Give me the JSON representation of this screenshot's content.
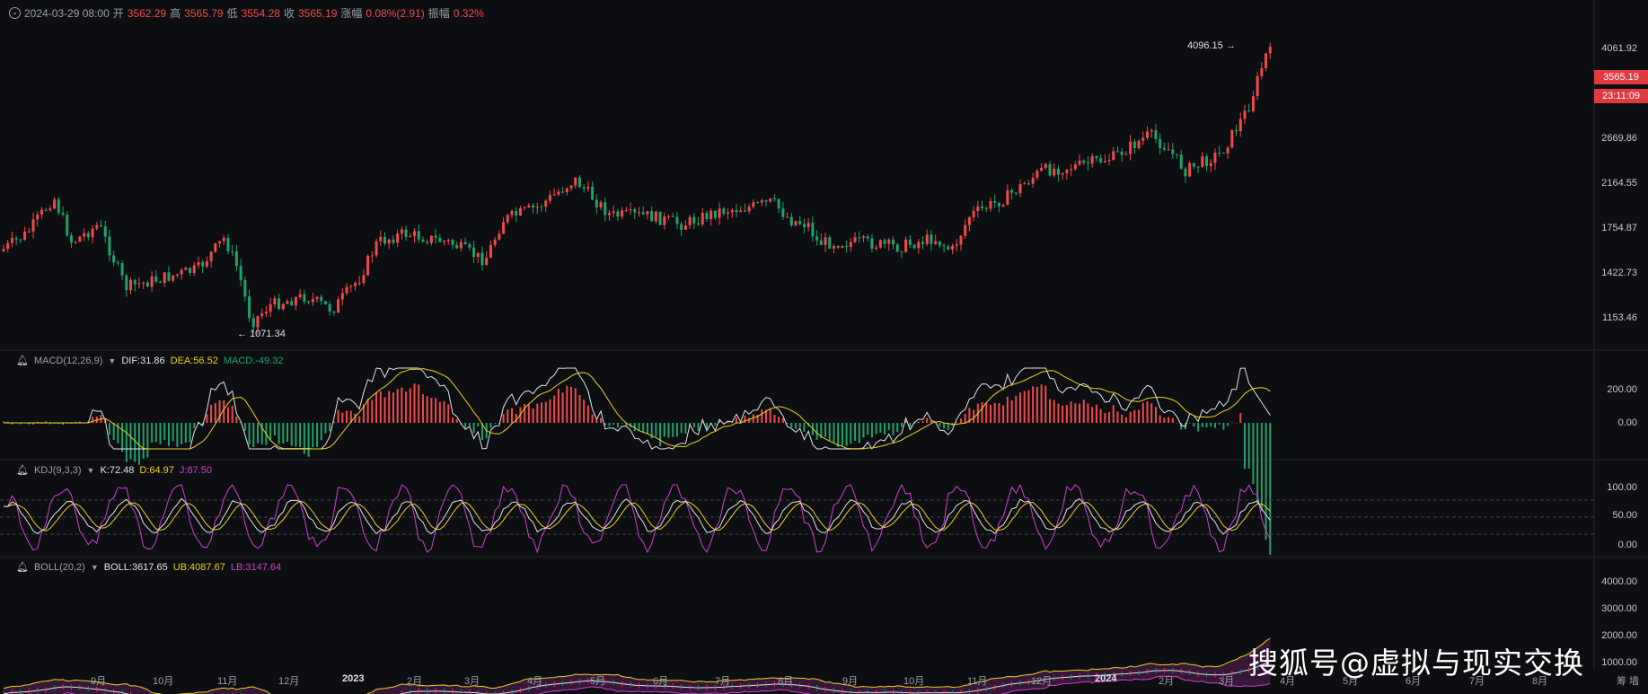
{
  "header": {
    "datetime": "2024-03-29 08:00",
    "open_label": "开",
    "open": "3562.29",
    "high_label": "高",
    "high": "3565.79",
    "low_label": "低",
    "low": "3554.28",
    "close_label": "收",
    "close": "3565.19",
    "change_label": "涨幅",
    "change": "0.08%(2.91)",
    "amp_label": "振幅",
    "amp": "0.32%"
  },
  "macd": {
    "name": "MACD(12,26,9)",
    "dif": "DIF:31.86",
    "dea": "DEA:56.52",
    "macd": "MACD:-49.32"
  },
  "kdj": {
    "name": "KDJ(9,3,3)",
    "k": "K:72.48",
    "d": "D:64.97",
    "j": "J:87.50"
  },
  "boll": {
    "name": "BOLL(20,2)",
    "mid": "BOLL:3617.65",
    "ub": "UB:4087.67",
    "lb": "LB:3147.64"
  },
  "price_axis": [
    "4061.92",
    "2669.86",
    "2164.55",
    "1754.87",
    "1422.73",
    "1153.46"
  ],
  "last_price": "3565.19",
  "countdown": "23:11:09",
  "macd_axis": [
    "200.00",
    "0.00"
  ],
  "kdj_axis": [
    "100.00",
    "50.00",
    "0.00"
  ],
  "boll_axis": [
    "4000.00",
    "3000.00",
    "2000.00",
    "1000.00"
  ],
  "x_axis": [
    {
      "label": "9月",
      "bold": false
    },
    {
      "label": "10月",
      "bold": false
    },
    {
      "label": "11月",
      "bold": false
    },
    {
      "label": "12月",
      "bold": false
    },
    {
      "label": "2023",
      "bold": true
    },
    {
      "label": "2月",
      "bold": false
    },
    {
      "label": "3月",
      "bold": false
    },
    {
      "label": "4月",
      "bold": false
    },
    {
      "label": "5月",
      "bold": false
    },
    {
      "label": "6月",
      "bold": false
    },
    {
      "label": "7月",
      "bold": false
    },
    {
      "label": "8月",
      "bold": false
    },
    {
      "label": "9月",
      "bold": false
    },
    {
      "label": "10月",
      "bold": false
    },
    {
      "label": "11月",
      "bold": false
    },
    {
      "label": "12月",
      "bold": false
    },
    {
      "label": "2024",
      "bold": true
    },
    {
      "label": "2月",
      "bold": false
    },
    {
      "label": "3月",
      "bold": false
    },
    {
      "label": "4月",
      "bold": false
    },
    {
      "label": "5月",
      "bold": false
    },
    {
      "label": "6月",
      "bold": false
    },
    {
      "label": "7月",
      "bold": false
    },
    {
      "label": "8月",
      "bold": false
    }
  ],
  "annotations": {
    "high": "4096.15",
    "low": "1071.34"
  },
  "corner_labels": "筹 墙",
  "watermark": "搜狐号@虚拟与现实交换",
  "colors": {
    "up": "#f04a4a",
    "down": "#1fa36b",
    "dea": "#f0d020",
    "dif": "#e1e3e8",
    "j": "#d040d0",
    "bg": "#0d0e12"
  },
  "chart_data": {
    "type": "candlestick",
    "months": [
      "2022-08",
      "2022-09",
      "2022-10",
      "2022-11",
      "2022-12",
      "2023-01",
      "2023-02",
      "2023-03",
      "2023-04",
      "2023-05",
      "2023-06",
      "2023-07",
      "2023-08",
      "2023-09",
      "2023-10",
      "2023-11",
      "2023-12",
      "2024-01",
      "2024-02",
      "2024-03"
    ],
    "close": [
      1650,
      1500,
      1300,
      1250,
      1200,
      1550,
      1650,
      1700,
      1950,
      1850,
      1850,
      1900,
      1800,
      1650,
      1600,
      1750,
      2200,
      2300,
      2900,
      3565
    ],
    "high_point": 4096.15,
    "low_point": 1071.34
  }
}
